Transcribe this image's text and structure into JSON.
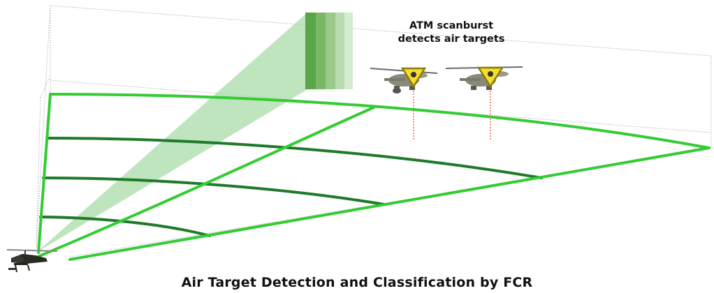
{
  "annotation": {
    "line1": "ATM scanburst",
    "line2": "detects air targets"
  },
  "caption": "Air Target Detection and Classification by FCR",
  "colors": {
    "grid_bright": "#33cc33",
    "grid_dark": "#1f7a2a",
    "beam_fill": "#a8dca8",
    "burst_bars": [
      "#5aa44a",
      "#78b866",
      "#98c98a",
      "#b8dcae",
      "#d6ecd0"
    ],
    "volume_outline": "#b0b0b0",
    "target_triangle": "#f5dd2a",
    "target_triangle_stroke": "#8a7a10",
    "drop_line": "#e07050"
  },
  "icons": {
    "ownship": "attack-helicopter-icon",
    "target": "enemy-helicopter-icon",
    "symbol": "air-target-triangle-icon"
  },
  "targets": [
    {
      "id": "target-1"
    },
    {
      "id": "target-2"
    }
  ]
}
